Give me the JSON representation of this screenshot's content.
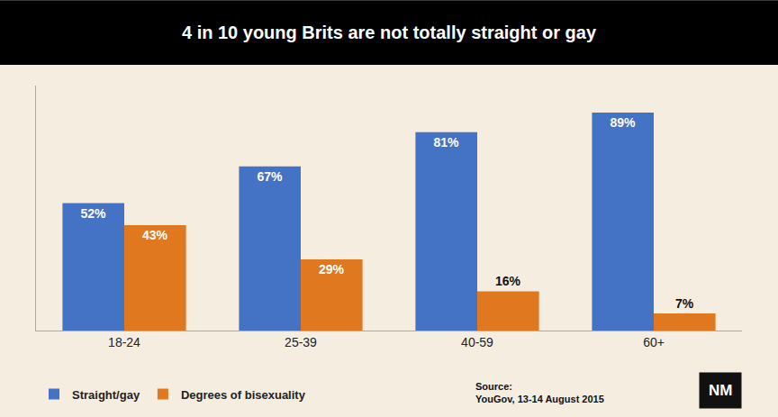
{
  "chart_data": {
    "type": "bar",
    "title": "4 in 10 young Brits are not totally straight or gay",
    "categories": [
      "18-24",
      "25-39",
      "40-59",
      "60+"
    ],
    "series": [
      {
        "name": "Straight/gay",
        "color": "#4472C4",
        "values": [
          52,
          67,
          81,
          89
        ],
        "value_labels": [
          "52%",
          "67%",
          "81%",
          "89%"
        ]
      },
      {
        "name": "Degrees of bisexuality",
        "color": "#E07820",
        "values": [
          43,
          29,
          16,
          7
        ],
        "value_labels": [
          "43%",
          "29%",
          "16%",
          "7%"
        ]
      }
    ],
    "ylim": [
      0,
      100
    ],
    "grid": false,
    "legend": "bottom left",
    "data_labels": true,
    "tick_labels": "x",
    "annotations": [
      "Source:\nYouGov, 13-14 August 2015",
      "NM"
    ]
  }
}
